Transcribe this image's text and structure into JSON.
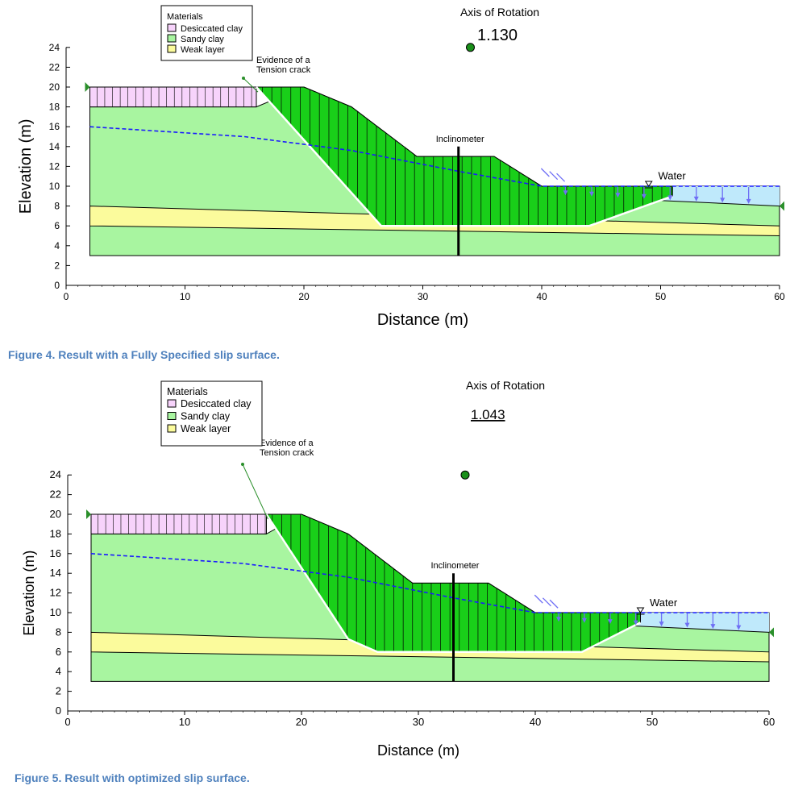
{
  "colors": {
    "clay": "#f7d3fb",
    "sandy": "#a8f5a0",
    "weak": "#fbfb9c",
    "slice": "#19cf19",
    "water": "#bfe9fb",
    "phreatic": "#1a1aff",
    "load": "#6f6ff5",
    "slip": "#ffffff",
    "caption": "#4f81bd"
  },
  "chart_data": [
    {
      "type": "slope-stability-section",
      "figure_caption": "Figure 4. Result with a Fully Specified slip surface.",
      "xlabel": "Distance (m)",
      "ylabel": "Elevation (m)",
      "xlim": [
        0,
        60
      ],
      "ylim": [
        0,
        24
      ],
      "xticks": [
        0,
        10,
        20,
        30,
        40,
        50,
        60
      ],
      "yticks": [
        0,
        2,
        4,
        6,
        8,
        10,
        12,
        14,
        16,
        18,
        20,
        22,
        24
      ],
      "legend": {
        "title": "Materials",
        "items": [
          "Desiccated clay",
          "Sandy clay",
          "Weak layer"
        ]
      },
      "annotations": {
        "axis": "Axis of Rotation",
        "fos": "1.130",
        "crack": [
          "Evidence of a",
          "Tension crack"
        ],
        "inclinometer": "Inclinometer",
        "water": "Water"
      },
      "center_of_rotation": [
        34,
        24
      ],
      "layers": {
        "ground_surface": [
          [
            2,
            20
          ],
          [
            16,
            20
          ],
          [
            20,
            20
          ],
          [
            24,
            18
          ],
          [
            29.5,
            13
          ],
          [
            36,
            13
          ],
          [
            40,
            10
          ],
          [
            60,
            10
          ]
        ],
        "clay_base": [
          [
            2,
            18
          ],
          [
            16,
            18
          ]
        ],
        "weak_top": [
          [
            2,
            8
          ],
          [
            60,
            6
          ]
        ],
        "weak_bottom": [
          [
            2,
            6
          ],
          [
            60,
            5
          ]
        ],
        "sandy_bottom": 3,
        "toe_ground": [
          [
            42,
            9
          ],
          [
            60,
            8
          ]
        ]
      },
      "phreatic_line": [
        [
          2,
          16
        ],
        [
          15,
          15
        ],
        [
          24,
          13.6
        ],
        [
          33,
          11.5
        ],
        [
          40,
          10
        ],
        [
          60,
          10
        ]
      ],
      "slip_surface": [
        [
          16,
          20
        ],
        [
          26.5,
          6
        ],
        [
          44,
          6
        ],
        [
          51,
          9
        ]
      ],
      "inclinometer_x": 33
    },
    {
      "type": "slope-stability-section",
      "figure_caption": "Figure 5.  Result with optimized slip surface.",
      "xlabel": "Distance (m)",
      "ylabel": "Elevation (m)",
      "xlim": [
        0,
        60
      ],
      "ylim": [
        0,
        24
      ],
      "xticks": [
        0,
        10,
        20,
        30,
        40,
        50,
        60
      ],
      "yticks": [
        0,
        2,
        4,
        6,
        8,
        10,
        12,
        14,
        16,
        18,
        20,
        22,
        24
      ],
      "legend": {
        "title": "Materials",
        "items": [
          "Desiccated clay",
          "Sandy clay",
          "Weak layer"
        ]
      },
      "annotations": {
        "axis": "Axis of Rotation",
        "fos": "1.043",
        "crack": [
          "Evidence of a",
          "Tension crack"
        ],
        "inclinometer": "Inclinometer",
        "water": "Water"
      },
      "center_of_rotation": [
        34,
        24
      ],
      "layers": {
        "ground_surface": [
          [
            2,
            20
          ],
          [
            17,
            20
          ],
          [
            20,
            20
          ],
          [
            24,
            18
          ],
          [
            29.5,
            13
          ],
          [
            36,
            13
          ],
          [
            40,
            10
          ],
          [
            60,
            10
          ]
        ],
        "clay_base": [
          [
            2,
            18
          ],
          [
            17,
            18
          ]
        ],
        "weak_top": [
          [
            2,
            8
          ],
          [
            60,
            6
          ]
        ],
        "weak_bottom": [
          [
            2,
            6
          ],
          [
            60,
            5
          ]
        ],
        "sandy_bottom": 3,
        "toe_ground": [
          [
            42,
            9
          ],
          [
            60,
            8
          ]
        ]
      },
      "phreatic_line": [
        [
          2,
          16
        ],
        [
          15,
          15
        ],
        [
          24,
          13.6
        ],
        [
          33,
          11.5
        ],
        [
          40,
          10
        ],
        [
          60,
          10
        ]
      ],
      "slip_surface": [
        [
          17,
          20
        ],
        [
          24,
          7.3
        ],
        [
          26.5,
          6
        ],
        [
          44,
          6
        ],
        [
          49,
          9
        ]
      ],
      "inclinometer_x": 33
    }
  ]
}
